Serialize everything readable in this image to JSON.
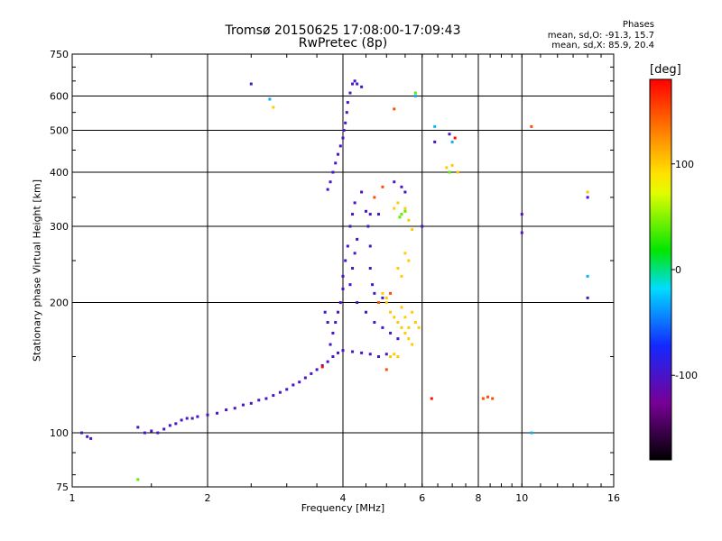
{
  "chart_data": {
    "type": "scatter",
    "title": "Tromsø 20150625 17:08:00-17:09:43",
    "subtitle": "RwPretec (8p)",
    "stats": {
      "heading": "Phases",
      "line1": "mean, sd,O: -91.3, 15.7",
      "line2": "mean, sd,X: 85.9, 20.4"
    },
    "xlabel": "Frequency [MHz]",
    "ylabel": "Stationary phase Virtual Height [km]",
    "xscale": "log",
    "yscale": "log",
    "xlim": [
      1,
      16
    ],
    "ylim": [
      75,
      750
    ],
    "xticks": [
      1,
      2,
      4,
      6,
      8,
      10,
      16
    ],
    "yticks": [
      75,
      100,
      200,
      300,
      400,
      500,
      600,
      750
    ],
    "xgrid": [
      2,
      4,
      6,
      8,
      10
    ],
    "ygrid": [
      100,
      200,
      300,
      400,
      500,
      600
    ],
    "grid": true,
    "colorbar": {
      "label": "[deg]",
      "range": [
        -180,
        180
      ],
      "ticks": [
        100,
        0,
        -100
      ]
    },
    "series": [
      {
        "color_value": -100,
        "points": [
          [
            1.05,
            100
          ],
          [
            1.08,
            98
          ],
          [
            1.1,
            97
          ],
          [
            1.4,
            103
          ],
          [
            1.45,
            100
          ],
          [
            1.5,
            101
          ],
          [
            1.55,
            100
          ],
          [
            1.6,
            102
          ],
          [
            1.65,
            104
          ],
          [
            1.7,
            105
          ],
          [
            1.75,
            107
          ],
          [
            1.8,
            108
          ],
          [
            1.85,
            108
          ],
          [
            1.9,
            109
          ],
          [
            2.0,
            110
          ],
          [
            2.1,
            111
          ],
          [
            2.2,
            113
          ],
          [
            2.3,
            114
          ],
          [
            2.4,
            116
          ],
          [
            2.5,
            117
          ],
          [
            2.6,
            119
          ],
          [
            2.7,
            120
          ],
          [
            2.8,
            122
          ],
          [
            2.9,
            124
          ],
          [
            3.0,
            126
          ],
          [
            3.1,
            129
          ],
          [
            3.2,
            131
          ],
          [
            3.3,
            134
          ],
          [
            3.4,
            137
          ],
          [
            3.5,
            140
          ],
          [
            3.6,
            143
          ],
          [
            3.7,
            146
          ],
          [
            3.8,
            150
          ],
          [
            3.9,
            153
          ],
          [
            4.0,
            155
          ],
          [
            4.2,
            154
          ],
          [
            4.4,
            153
          ],
          [
            4.6,
            152
          ],
          [
            4.8,
            150
          ],
          [
            5.0,
            152
          ],
          [
            3.75,
            160
          ],
          [
            3.8,
            170
          ],
          [
            3.85,
            180
          ],
          [
            3.9,
            190
          ],
          [
            3.95,
            200
          ],
          [
            4.0,
            215
          ],
          [
            4.0,
            230
          ],
          [
            4.05,
            250
          ],
          [
            4.1,
            270
          ],
          [
            4.15,
            300
          ],
          [
            4.2,
            320
          ],
          [
            4.25,
            340
          ],
          [
            3.7,
            365
          ],
          [
            3.75,
            380
          ],
          [
            3.8,
            400
          ],
          [
            3.85,
            420
          ],
          [
            3.9,
            440
          ],
          [
            3.95,
            460
          ],
          [
            4.0,
            480
          ],
          [
            4.02,
            500
          ],
          [
            4.05,
            520
          ],
          [
            4.08,
            550
          ],
          [
            4.1,
            580
          ],
          [
            4.15,
            610
          ],
          [
            4.2,
            640
          ],
          [
            4.25,
            650
          ],
          [
            4.3,
            640
          ],
          [
            4.4,
            630
          ],
          [
            4.5,
            325
          ],
          [
            4.6,
            320
          ],
          [
            4.8,
            320
          ],
          [
            4.4,
            360
          ],
          [
            4.3,
            280
          ],
          [
            4.25,
            260
          ],
          [
            4.2,
            240
          ],
          [
            4.15,
            220
          ],
          [
            4.3,
            200
          ],
          [
            4.5,
            190
          ],
          [
            4.7,
            180
          ],
          [
            4.9,
            175
          ],
          [
            5.1,
            170
          ],
          [
            5.3,
            165
          ],
          [
            3.7,
            180
          ],
          [
            3.65,
            190
          ],
          [
            4.55,
            300
          ],
          [
            4.6,
            270
          ],
          [
            4.6,
            240
          ],
          [
            4.65,
            220
          ],
          [
            4.7,
            210
          ],
          [
            4.9,
            205
          ],
          [
            5.2,
            380
          ],
          [
            5.4,
            370
          ],
          [
            5.5,
            360
          ],
          [
            6.0,
            300
          ],
          [
            6.4,
            470
          ],
          [
            6.9,
            490
          ],
          [
            10.0,
            320
          ],
          [
            10.0,
            290
          ],
          [
            14.0,
            350
          ],
          [
            14.0,
            205
          ],
          [
            2.5,
            640
          ]
        ]
      },
      {
        "color_value": 100,
        "points": [
          [
            5.0,
            200
          ],
          [
            5.1,
            190
          ],
          [
            5.2,
            185
          ],
          [
            5.3,
            180
          ],
          [
            5.4,
            175
          ],
          [
            5.5,
            170
          ],
          [
            5.6,
            165
          ],
          [
            5.7,
            160
          ],
          [
            5.6,
            175
          ],
          [
            5.5,
            185
          ],
          [
            5.4,
            195
          ],
          [
            5.7,
            190
          ],
          [
            5.8,
            180
          ],
          [
            5.9,
            175
          ],
          [
            5.2,
            330
          ],
          [
            5.3,
            340
          ],
          [
            5.5,
            330
          ],
          [
            5.6,
            310
          ],
          [
            5.7,
            295
          ],
          [
            5.5,
            260
          ],
          [
            5.6,
            250
          ],
          [
            5.3,
            240
          ],
          [
            5.4,
            230
          ],
          [
            5.1,
            150
          ],
          [
            5.2,
            152
          ],
          [
            5.3,
            150
          ],
          [
            4.9,
            210
          ],
          [
            5.0,
            205
          ],
          [
            6.8,
            410
          ],
          [
            7.0,
            415
          ],
          [
            7.2,
            400
          ],
          [
            2.8,
            565
          ],
          [
            14.0,
            360
          ]
        ]
      },
      {
        "color_value": 150,
        "points": [
          [
            8.2,
            120
          ],
          [
            8.4,
            121
          ],
          [
            8.6,
            120
          ],
          [
            5.0,
            140
          ],
          [
            4.8,
            200
          ],
          [
            5.1,
            210
          ],
          [
            10.5,
            510
          ],
          [
            5.2,
            560
          ],
          [
            4.9,
            370
          ],
          [
            4.7,
            350
          ]
        ]
      },
      {
        "color_value": 40,
        "points": [
          [
            5.4,
            320
          ],
          [
            5.5,
            325
          ],
          [
            5.35,
            315
          ],
          [
            6.9,
            400
          ],
          [
            5.8,
            610
          ],
          [
            1.4,
            78
          ]
        ]
      },
      {
        "color_value": -30,
        "points": [
          [
            2.75,
            590
          ],
          [
            6.4,
            510
          ],
          [
            5.8,
            600
          ],
          [
            10.5,
            100
          ],
          [
            14.0,
            230
          ],
          [
            7.0,
            470
          ]
        ]
      },
      {
        "color_value": 175,
        "points": [
          [
            3.6,
            142
          ],
          [
            7.1,
            480
          ],
          [
            6.3,
            120
          ]
        ]
      }
    ]
  }
}
